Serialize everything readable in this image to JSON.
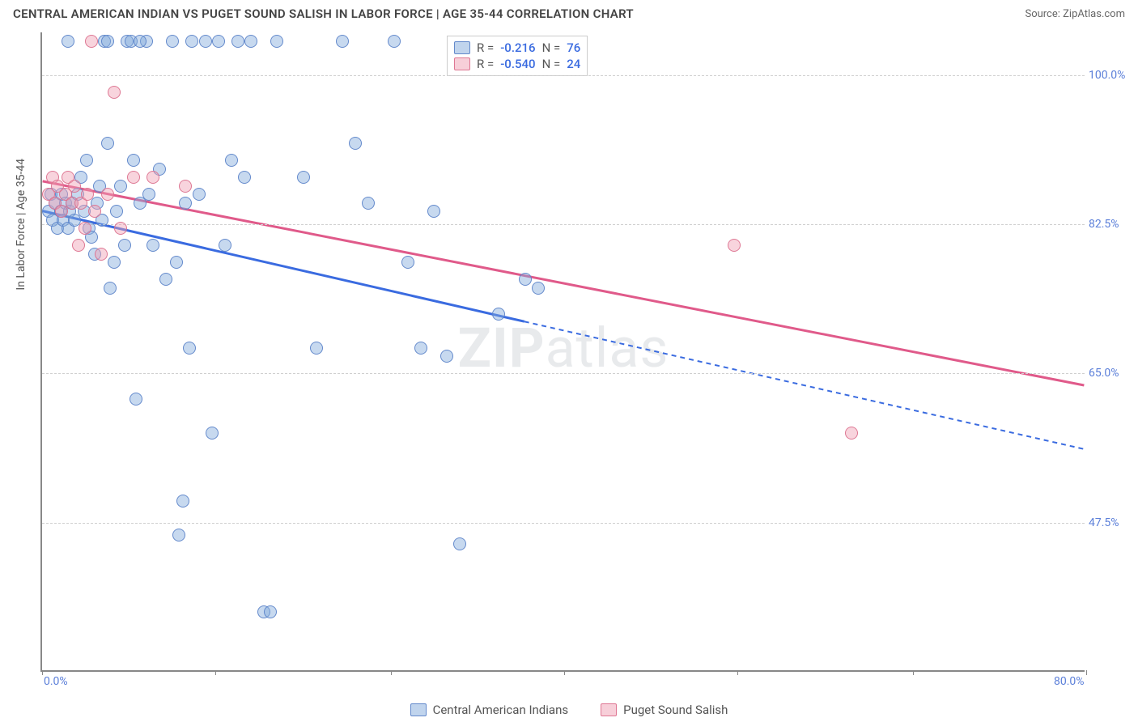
{
  "header": {
    "title": "CENTRAL AMERICAN INDIAN VS PUGET SOUND SALISH IN LABOR FORCE | AGE 35-44 CORRELATION CHART",
    "source": "Source: ZipAtlas.com"
  },
  "chart": {
    "type": "scatter",
    "ylabel": "In Labor Force | Age 35-44",
    "watermark_bold": "ZIP",
    "watermark_rest": "atlas",
    "background_color": "#ffffff",
    "grid_color": "#d0d0d0",
    "axis_color": "#888888",
    "tick_label_color": "#5b7fd9",
    "xlim": [
      0,
      80
    ],
    "ylim": [
      30,
      105
    ],
    "xticks": [
      {
        "v": 0,
        "label": "0.0%"
      },
      {
        "v": 40,
        "label": ""
      },
      {
        "v": 80,
        "label": "80.0%"
      }
    ],
    "xtick_marks": [
      0,
      13.3,
      26.7,
      40,
      53.3,
      66.7,
      80
    ],
    "yticks": [
      {
        "v": 100.0,
        "label": "100.0%"
      },
      {
        "v": 82.5,
        "label": "82.5%"
      },
      {
        "v": 65.0,
        "label": "65.0%"
      },
      {
        "v": 47.5,
        "label": "47.5%"
      }
    ],
    "series": [
      {
        "id": "cai",
        "name": "Central American Indians",
        "color_fill": "rgba(130,170,220,0.45)",
        "color_stroke": "rgba(90,130,200,0.9)",
        "line_color": "#3a6be0",
        "R": "-0.216",
        "N": "76",
        "trend": {
          "x1": 0,
          "y1": 84.0,
          "x2": 37,
          "y2": 71.0,
          "extend_x": 80,
          "extend_y": 56.0
        },
        "points": [
          [
            0.5,
            84
          ],
          [
            0.7,
            86
          ],
          [
            0.8,
            83
          ],
          [
            1.0,
            85
          ],
          [
            1.2,
            82
          ],
          [
            1.4,
            84
          ],
          [
            1.5,
            86
          ],
          [
            1.6,
            83
          ],
          [
            1.8,
            85
          ],
          [
            2.0,
            82
          ],
          [
            2.1,
            84
          ],
          [
            2.3,
            85
          ],
          [
            2.5,
            83
          ],
          [
            2.7,
            86
          ],
          [
            3.0,
            88
          ],
          [
            3.2,
            84
          ],
          [
            3.4,
            90
          ],
          [
            3.6,
            82
          ],
          [
            3.8,
            81
          ],
          [
            4.0,
            79
          ],
          [
            4.2,
            85
          ],
          [
            4.4,
            87
          ],
          [
            4.6,
            83
          ],
          [
            4.8,
            104
          ],
          [
            5.0,
            92
          ],
          [
            5.2,
            75
          ],
          [
            5.5,
            78
          ],
          [
            5.7,
            84
          ],
          [
            6.0,
            87
          ],
          [
            6.3,
            80
          ],
          [
            6.5,
            104
          ],
          [
            6.8,
            104
          ],
          [
            7.0,
            90
          ],
          [
            7.2,
            62
          ],
          [
            7.5,
            85
          ],
          [
            8.0,
            104
          ],
          [
            8.2,
            86
          ],
          [
            8.5,
            80
          ],
          [
            9.0,
            89
          ],
          [
            9.5,
            76
          ],
          [
            10.0,
            104
          ],
          [
            10.3,
            78
          ],
          [
            10.5,
            46
          ],
          [
            10.8,
            50
          ],
          [
            11.0,
            85
          ],
          [
            11.3,
            68
          ],
          [
            11.5,
            104
          ],
          [
            12.0,
            86
          ],
          [
            12.5,
            104
          ],
          [
            13.0,
            58
          ],
          [
            13.5,
            104
          ],
          [
            14.0,
            80
          ],
          [
            14.5,
            90
          ],
          [
            15.0,
            104
          ],
          [
            15.5,
            88
          ],
          [
            16.0,
            104
          ],
          [
            17.0,
            37
          ],
          [
            17.5,
            37
          ],
          [
            18.0,
            104
          ],
          [
            20.0,
            88
          ],
          [
            21.0,
            68
          ],
          [
            23.0,
            104
          ],
          [
            24.0,
            92
          ],
          [
            25.0,
            85
          ],
          [
            27.0,
            104
          ],
          [
            28.0,
            78
          ],
          [
            29.0,
            68
          ],
          [
            30.0,
            84
          ],
          [
            31.0,
            67
          ],
          [
            32.0,
            45
          ],
          [
            35.0,
            72
          ],
          [
            37.0,
            76
          ],
          [
            38.0,
            75
          ],
          [
            5.0,
            104
          ],
          [
            7.5,
            104
          ],
          [
            2.0,
            104
          ]
        ]
      },
      {
        "id": "pss",
        "name": "Puget Sound Salish",
        "color_fill": "rgba(240,160,180,0.45)",
        "color_stroke": "rgba(220,110,140,0.9)",
        "line_color": "#e05a8a",
        "R": "-0.540",
        "N": "24",
        "trend": {
          "x1": 0,
          "y1": 87.5,
          "x2": 80,
          "y2": 63.5
        },
        "points": [
          [
            0.5,
            86
          ],
          [
            0.8,
            88
          ],
          [
            1.0,
            85
          ],
          [
            1.2,
            87
          ],
          [
            1.5,
            84
          ],
          [
            1.8,
            86
          ],
          [
            2.0,
            88
          ],
          [
            2.3,
            85
          ],
          [
            2.5,
            87
          ],
          [
            2.8,
            80
          ],
          [
            3.0,
            85
          ],
          [
            3.3,
            82
          ],
          [
            3.5,
            86
          ],
          [
            3.8,
            104
          ],
          [
            4.0,
            84
          ],
          [
            4.5,
            79
          ],
          [
            5.0,
            86
          ],
          [
            5.5,
            98
          ],
          [
            6.0,
            82
          ],
          [
            7.0,
            88
          ],
          [
            8.5,
            88
          ],
          [
            11.0,
            87
          ],
          [
            53.0,
            80
          ],
          [
            62.0,
            58
          ]
        ]
      }
    ],
    "legend": {
      "r_label": "R =",
      "n_label": "N ="
    },
    "bottom_legend": [
      {
        "series": "cai",
        "label": "Central American Indians"
      },
      {
        "series": "pss",
        "label": "Puget Sound Salish"
      }
    ]
  }
}
